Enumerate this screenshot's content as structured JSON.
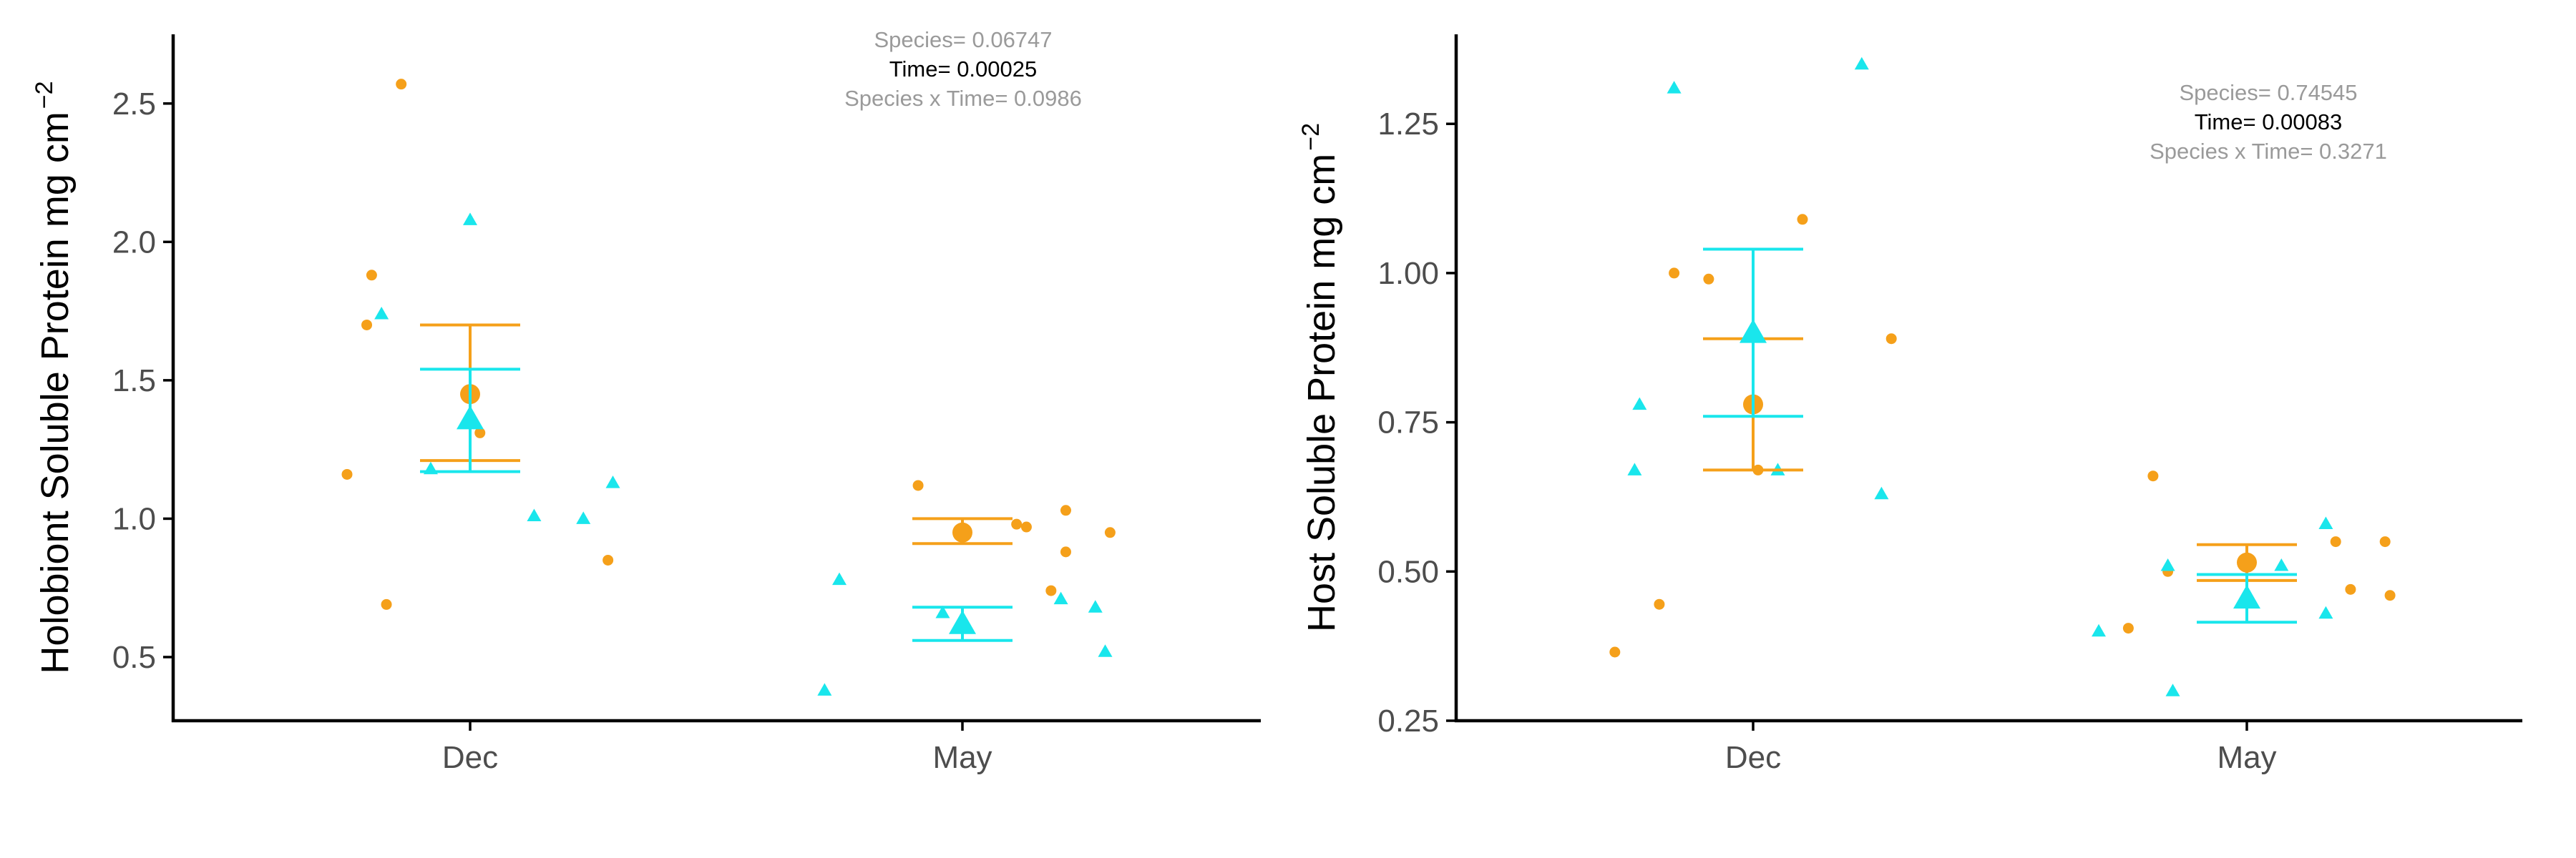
{
  "colors": {
    "orange": "#f5a01a",
    "cyan": "#19e6ec"
  },
  "chart_data": [
    {
      "type": "scatter",
      "ylabel": "Holobiont Soluble Protein mg cm",
      "ylabel_exponent": "−2",
      "categories": [
        "Dec",
        "May"
      ],
      "ylim": [
        0.27,
        2.75
      ],
      "yticks": [
        0.5,
        1.0,
        1.5,
        2.0,
        2.5
      ],
      "ytick_labels": [
        "0.5",
        "1.0",
        "1.5",
        "2.0",
        "2.5"
      ],
      "annotations": [
        {
          "text": "Species= 0.06747",
          "significant": false
        },
        {
          "text": "Time= 0.00025",
          "significant": true
        },
        {
          "text": "Species x Time= 0.0986",
          "significant": false
        }
      ],
      "series": [
        {
          "color": "orange",
          "marker": "circle",
          "points": [
            {
              "x": -0.25,
              "y": 1.16
            },
            {
              "x": -0.21,
              "y": 1.7
            },
            {
              "x": -0.2,
              "y": 1.88
            },
            {
              "x": -0.17,
              "y": 0.69
            },
            {
              "x": -0.14,
              "y": 2.57
            },
            {
              "x": 0.02,
              "y": 1.31
            },
            {
              "x": 0.28,
              "y": 0.85
            },
            {
              "x": 0.91,
              "y": 1.12
            },
            {
              "x": 1.11,
              "y": 0.98
            },
            {
              "x": 1.13,
              "y": 0.97
            },
            {
              "x": 1.18,
              "y": 0.74
            },
            {
              "x": 1.21,
              "y": 1.03
            },
            {
              "x": 1.21,
              "y": 0.88
            },
            {
              "x": 1.3,
              "y": 0.95
            }
          ],
          "means": [
            {
              "x": 0,
              "mean": 1.45,
              "lower": 1.21,
              "upper": 1.7
            },
            {
              "x": 1,
              "mean": 0.95,
              "lower": 0.91,
              "upper": 1.0
            }
          ]
        },
        {
          "color": "cyan",
          "marker": "triangle",
          "points": [
            {
              "x": -0.18,
              "y": 1.74
            },
            {
              "x": -0.08,
              "y": 1.18
            },
            {
              "x": 0.0,
              "y": 2.08
            },
            {
              "x": 0.13,
              "y": 1.01
            },
            {
              "x": 0.23,
              "y": 1.0
            },
            {
              "x": 0.29,
              "y": 1.13
            },
            {
              "x": 0.72,
              "y": 0.38
            },
            {
              "x": 0.75,
              "y": 0.78
            },
            {
              "x": 0.96,
              "y": 0.66
            },
            {
              "x": 1.2,
              "y": 0.71
            },
            {
              "x": 1.27,
              "y": 0.68
            },
            {
              "x": 1.29,
              "y": 0.52
            }
          ],
          "means": [
            {
              "x": 0,
              "mean": 1.36,
              "lower": 1.17,
              "upper": 1.54
            },
            {
              "x": 1,
              "mean": 0.62,
              "lower": 0.56,
              "upper": 0.68
            }
          ]
        }
      ]
    },
    {
      "type": "scatter",
      "ylabel": "Host Soluble Protein mg cm",
      "ylabel_exponent": "−2",
      "categories": [
        "Dec",
        "May"
      ],
      "ylim": [
        0.25,
        1.4
      ],
      "yticks": [
        0.25,
        0.5,
        0.75,
        1.0,
        1.25
      ],
      "ytick_labels": [
        "0.25",
        "0.50",
        "0.75",
        "1.00",
        "1.25"
      ],
      "annotations": [
        {
          "text": "Species= 0.74545",
          "significant": false
        },
        {
          "text": "Time= 0.00083",
          "significant": true
        },
        {
          "text": "Species x Time= 0.3271",
          "significant": false
        }
      ],
      "series": [
        {
          "color": "orange",
          "marker": "circle",
          "points": [
            {
              "x": -0.28,
              "y": 0.365
            },
            {
              "x": -0.19,
              "y": 0.445
            },
            {
              "x": -0.16,
              "y": 1.0
            },
            {
              "x": -0.09,
              "y": 0.99
            },
            {
              "x": 0.01,
              "y": 0.67
            },
            {
              "x": 0.1,
              "y": 1.09
            },
            {
              "x": 0.28,
              "y": 0.89
            },
            {
              "x": 0.76,
              "y": 0.405
            },
            {
              "x": 0.81,
              "y": 0.66
            },
            {
              "x": 0.84,
              "y": 0.5
            },
            {
              "x": 1.18,
              "y": 0.55
            },
            {
              "x": 1.21,
              "y": 0.47
            },
            {
              "x": 1.28,
              "y": 0.55
            },
            {
              "x": 1.29,
              "y": 0.46
            }
          ],
          "means": [
            {
              "x": 0,
              "mean": 0.78,
              "lower": 0.67,
              "upper": 0.89
            },
            {
              "x": 1,
              "mean": 0.515,
              "lower": 0.485,
              "upper": 0.545
            }
          ]
        },
        {
          "color": "cyan",
          "marker": "triangle",
          "points": [
            {
              "x": -0.24,
              "y": 0.67
            },
            {
              "x": -0.23,
              "y": 0.78
            },
            {
              "x": -0.16,
              "y": 1.31
            },
            {
              "x": 0.05,
              "y": 0.67
            },
            {
              "x": 0.22,
              "y": 1.35
            },
            {
              "x": 0.26,
              "y": 0.63
            },
            {
              "x": 0.7,
              "y": 0.4
            },
            {
              "x": 0.85,
              "y": 0.3
            },
            {
              "x": 0.84,
              "y": 0.51
            },
            {
              "x": 1.07,
              "y": 0.51
            },
            {
              "x": 1.16,
              "y": 0.58
            },
            {
              "x": 1.16,
              "y": 0.43
            }
          ],
          "means": [
            {
              "x": 0,
              "mean": 0.9,
              "lower": 0.76,
              "upper": 1.04
            },
            {
              "x": 1,
              "mean": 0.455,
              "lower": 0.415,
              "upper": 0.495
            }
          ]
        }
      ]
    }
  ]
}
